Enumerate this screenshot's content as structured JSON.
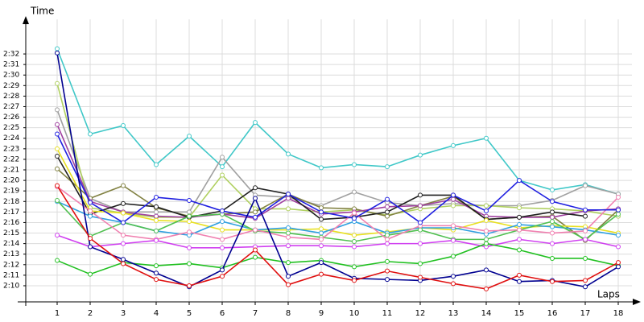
{
  "chart_data": {
    "type": "line",
    "y_label": "Time",
    "x_label": "Laps",
    "categories": [
      1,
      2,
      3,
      4,
      5,
      6,
      7,
      8,
      9,
      10,
      11,
      12,
      13,
      14,
      15,
      16,
      17,
      18
    ],
    "ylim": [
      128.5,
      154.8
    ],
    "yticks": [
      {
        "value": 130,
        "label": "2:10"
      },
      {
        "value": 131,
        "label": "2:11"
      },
      {
        "value": 132,
        "label": "2:12"
      },
      {
        "value": 133,
        "label": "2:13"
      },
      {
        "value": 134,
        "label": "2:14"
      },
      {
        "value": 135,
        "label": "2:15"
      },
      {
        "value": 136,
        "label": "2:16"
      },
      {
        "value": 137,
        "label": "2:17"
      },
      {
        "value": 138,
        "label": "2:18"
      },
      {
        "value": 139,
        "label": "2:19"
      },
      {
        "value": 140,
        "label": "2:20"
      },
      {
        "value": 141,
        "label": "2:21"
      },
      {
        "value": 142,
        "label": "2:22"
      },
      {
        "value": 143,
        "label": "2:23"
      },
      {
        "value": 144,
        "label": "2:24"
      },
      {
        "value": 145,
        "label": "2:25"
      },
      {
        "value": 146,
        "label": "2:26"
      },
      {
        "value": 147,
        "label": "2:27"
      },
      {
        "value": 148,
        "label": "2:28"
      },
      {
        "value": 149,
        "label": "2:29"
      },
      {
        "value": 150,
        "label": "2:30"
      },
      {
        "value": 151,
        "label": "2:31"
      },
      {
        "value": 152,
        "label": "2:32"
      }
    ],
    "grid": true,
    "series": [
      {
        "color": "#40c8c8",
        "values": [
          152.5,
          144.4,
          145.2,
          141.5,
          144.2,
          141.3,
          145.5,
          142.5,
          141.2,
          141.5,
          141.3,
          142.4,
          143.3,
          144.0,
          140.0,
          139.1,
          139.6,
          138.7
        ]
      },
      {
        "color": "#a0a0a0",
        "values": [
          146.7,
          138.3,
          137.0,
          137.0,
          137.0,
          142.2,
          138.6,
          138.4,
          137.6,
          138.9,
          137.9,
          137.6,
          137.8,
          137.6,
          137.6,
          138.1,
          139.5,
          138.7
        ]
      },
      {
        "color": "#b0d060",
        "values": [
          149.2,
          137.4,
          136.9,
          136.5,
          136.5,
          140.5,
          137.3,
          137.3,
          137.0,
          137.2,
          136.7,
          137.3,
          137.6,
          137.6,
          137.4,
          137.3,
          137.1,
          136.6
        ]
      },
      {
        "color": "#808040",
        "values": [
          141.1,
          138.3,
          139.5,
          137.4,
          136.6,
          136.8,
          137.0,
          138.7,
          137.4,
          137.3,
          136.6,
          137.6,
          138.5,
          136.3,
          136.5,
          136.6,
          134.3,
          137.2
        ]
      },
      {
        "color": "#a040a0",
        "values": [
          145.3,
          138.0,
          137.0,
          136.6,
          136.5,
          136.8,
          136.4,
          138.3,
          136.8,
          137.0,
          137.5,
          137.6,
          138.2,
          136.6,
          136.5,
          136.5,
          137.1,
          137.3
        ]
      },
      {
        "color": "#202020",
        "values": [
          142.3,
          136.8,
          137.8,
          137.5,
          136.5,
          137.1,
          139.3,
          138.7,
          136.3,
          136.5,
          137.0,
          138.6,
          138.6,
          136.3,
          136.5,
          137.0,
          136.6,
          null
        ]
      },
      {
        "color": "#e8e020",
        "values": [
          143.0,
          137.1,
          136.9,
          136.2,
          136.1,
          135.3,
          135.3,
          135.3,
          135.4,
          134.8,
          135.1,
          135.5,
          135.3,
          136.2,
          135.5,
          135.7,
          135.6,
          135.0
        ]
      },
      {
        "color": "#30a0e0",
        "values": [
          138.0,
          136.6,
          136.0,
          135.2,
          134.8,
          136.1,
          135.3,
          135.5,
          135.0,
          136.1,
          135.0,
          135.5,
          135.5,
          134.9,
          135.8,
          135.6,
          135.3,
          134.8
        ]
      },
      {
        "color": "#50c050",
        "values": [
          138.1,
          134.7,
          136.0,
          135.2,
          136.6,
          136.8,
          135.2,
          135.0,
          134.6,
          134.2,
          134.8,
          135.3,
          134.4,
          134.4,
          135.3,
          136.1,
          134.4,
          136.8
        ]
      },
      {
        "color": "#f080b0",
        "values": [
          139.4,
          137.1,
          134.8,
          134.4,
          135.1,
          134.4,
          135.3,
          134.6,
          134.4,
          136.9,
          134.4,
          135.7,
          135.7,
          135.2,
          135.3,
          135.0,
          135.2,
          138.4
        ]
      },
      {
        "color": "#d040f0",
        "values": [
          134.8,
          133.7,
          134.0,
          134.3,
          133.6,
          133.6,
          133.7,
          133.8,
          133.8,
          133.7,
          134.0,
          134.0,
          134.3,
          133.7,
          134.4,
          134.0,
          134.4,
          133.7
        ]
      },
      {
        "color": "#20c020",
        "values": [
          132.4,
          131.1,
          132.2,
          131.9,
          132.1,
          131.7,
          132.7,
          132.2,
          132.4,
          131.8,
          132.3,
          132.1,
          132.8,
          134.0,
          133.4,
          132.6,
          132.6,
          131.9
        ]
      },
      {
        "color": "#2020e0",
        "values": [
          144.4,
          137.9,
          136.0,
          138.4,
          138.1,
          137.1,
          136.5,
          138.7,
          137.0,
          136.4,
          138.2,
          136.0,
          138.6,
          137.1,
          140.0,
          138.0,
          137.2,
          137.2
        ]
      },
      {
        "color": "#000090",
        "values": [
          152.1,
          133.7,
          132.5,
          131.2,
          129.9,
          131.5,
          138.3,
          130.9,
          132.2,
          130.7,
          130.6,
          130.5,
          130.9,
          131.5,
          130.4,
          130.5,
          129.9,
          131.8
        ]
      },
      {
        "color": "#e01010",
        "values": [
          139.5,
          134.5,
          132.1,
          130.6,
          130.0,
          130.9,
          133.4,
          130.1,
          131.1,
          130.5,
          131.4,
          130.8,
          130.2,
          129.7,
          131.0,
          130.4,
          130.5,
          132.2
        ]
      }
    ]
  }
}
